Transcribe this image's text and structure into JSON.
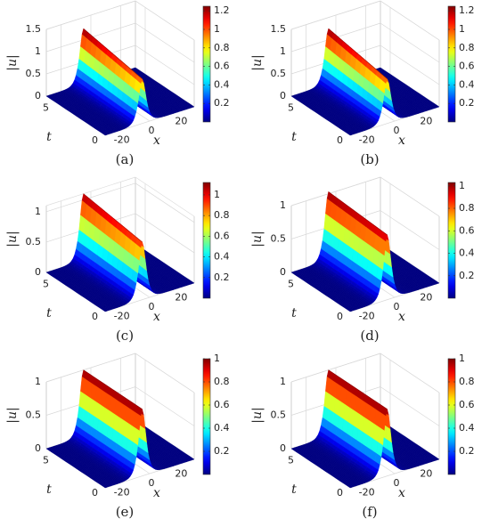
{
  "chart_data": [
    {
      "type": "surface",
      "label": "(a)",
      "zlabel": "|u|",
      "xlabel": "x",
      "ylabel": "t",
      "t": [
        0,
        6
      ],
      "values": [
        1.0,
        1.25
      ],
      "xlim": [
        -30,
        30
      ],
      "xticks": [
        -20,
        0,
        20
      ],
      "ylim": [
        0,
        6
      ],
      "yticks": [
        0,
        5
      ],
      "zlim": [
        0,
        1.5
      ],
      "zticks": [
        0,
        0.5,
        1,
        1.5
      ],
      "clim": [
        0,
        1.25
      ],
      "cticks": [
        0.2,
        0.4,
        0.6,
        0.8,
        1,
        1.2
      ],
      "colormap": "jet",
      "grid": true
    },
    {
      "type": "surface",
      "label": "(b)",
      "zlabel": "|u|",
      "xlabel": "x",
      "ylabel": "t",
      "t": [
        0,
        6
      ],
      "values": [
        1.0,
        1.25
      ],
      "xlim": [
        -30,
        30
      ],
      "xticks": [
        -20,
        0,
        20
      ],
      "ylim": [
        0,
        6
      ],
      "yticks": [
        0,
        5
      ],
      "zlim": [
        0,
        1.5
      ],
      "zticks": [
        0,
        0.5,
        1,
        1.5
      ],
      "clim": [
        0,
        1.25
      ],
      "cticks": [
        0.2,
        0.4,
        0.6,
        0.8,
        1,
        1.2
      ],
      "colormap": "jet",
      "grid": true
    },
    {
      "type": "surface",
      "label": "(c)",
      "zlabel": "|u|",
      "xlabel": "x",
      "ylabel": "t",
      "t": [
        0,
        6
      ],
      "values": [
        0.95,
        1.1
      ],
      "xlim": [
        -30,
        30
      ],
      "xticks": [
        -20,
        0,
        20
      ],
      "ylim": [
        0,
        6
      ],
      "yticks": [
        0,
        5
      ],
      "zlim": [
        0,
        1.1
      ],
      "zticks": [
        0,
        0.5,
        1
      ],
      "clim": [
        0,
        1.12
      ],
      "cticks": [
        0.2,
        0.4,
        0.6,
        0.8,
        1
      ],
      "colormap": "jet",
      "grid": true
    },
    {
      "type": "surface",
      "label": "(d)",
      "zlabel": "|u|",
      "xlabel": "x",
      "ylabel": "t",
      "t": [
        0,
        6
      ],
      "values": [
        0.97,
        1.03
      ],
      "xlim": [
        -30,
        30
      ],
      "xticks": [
        -20,
        0,
        20
      ],
      "ylim": [
        0,
        6
      ],
      "yticks": [
        0,
        5
      ],
      "zlim": [
        0,
        1
      ],
      "zticks": [
        0,
        0.5,
        1
      ],
      "clim": [
        0,
        1.03
      ],
      "cticks": [
        0.2,
        0.4,
        0.6,
        0.8,
        1
      ],
      "colormap": "jet",
      "grid": true
    },
    {
      "type": "surface",
      "label": "(e)",
      "zlabel": "|u|",
      "xlabel": "x",
      "ylabel": "t",
      "t": [
        0,
        6
      ],
      "values": [
        1,
        1
      ],
      "xlim": [
        -30,
        30
      ],
      "xticks": [
        -20,
        0,
        20
      ],
      "ylim": [
        0,
        6
      ],
      "yticks": [
        0,
        5
      ],
      "zlim": [
        0,
        1
      ],
      "zticks": [
        0,
        0.5,
        1
      ],
      "clim": [
        0,
        1
      ],
      "cticks": [
        0.2,
        0.4,
        0.6,
        0.8,
        1
      ],
      "colormap": "jet",
      "grid": true
    },
    {
      "type": "surface",
      "label": "(f)",
      "zlabel": "|u|",
      "xlabel": "x",
      "ylabel": "t",
      "t": [
        0,
        6
      ],
      "values": [
        1,
        1
      ],
      "xlim": [
        -30,
        30
      ],
      "xticks": [
        -20,
        0,
        20
      ],
      "ylim": [
        0,
        6
      ],
      "yticks": [
        0,
        5
      ],
      "zlim": [
        0,
        1
      ],
      "zticks": [
        0,
        0.5,
        1
      ],
      "clim": [
        0,
        1
      ],
      "cticks": [
        0.2,
        0.4,
        0.6,
        0.8,
        1
      ],
      "colormap": "jet",
      "grid": true
    }
  ]
}
